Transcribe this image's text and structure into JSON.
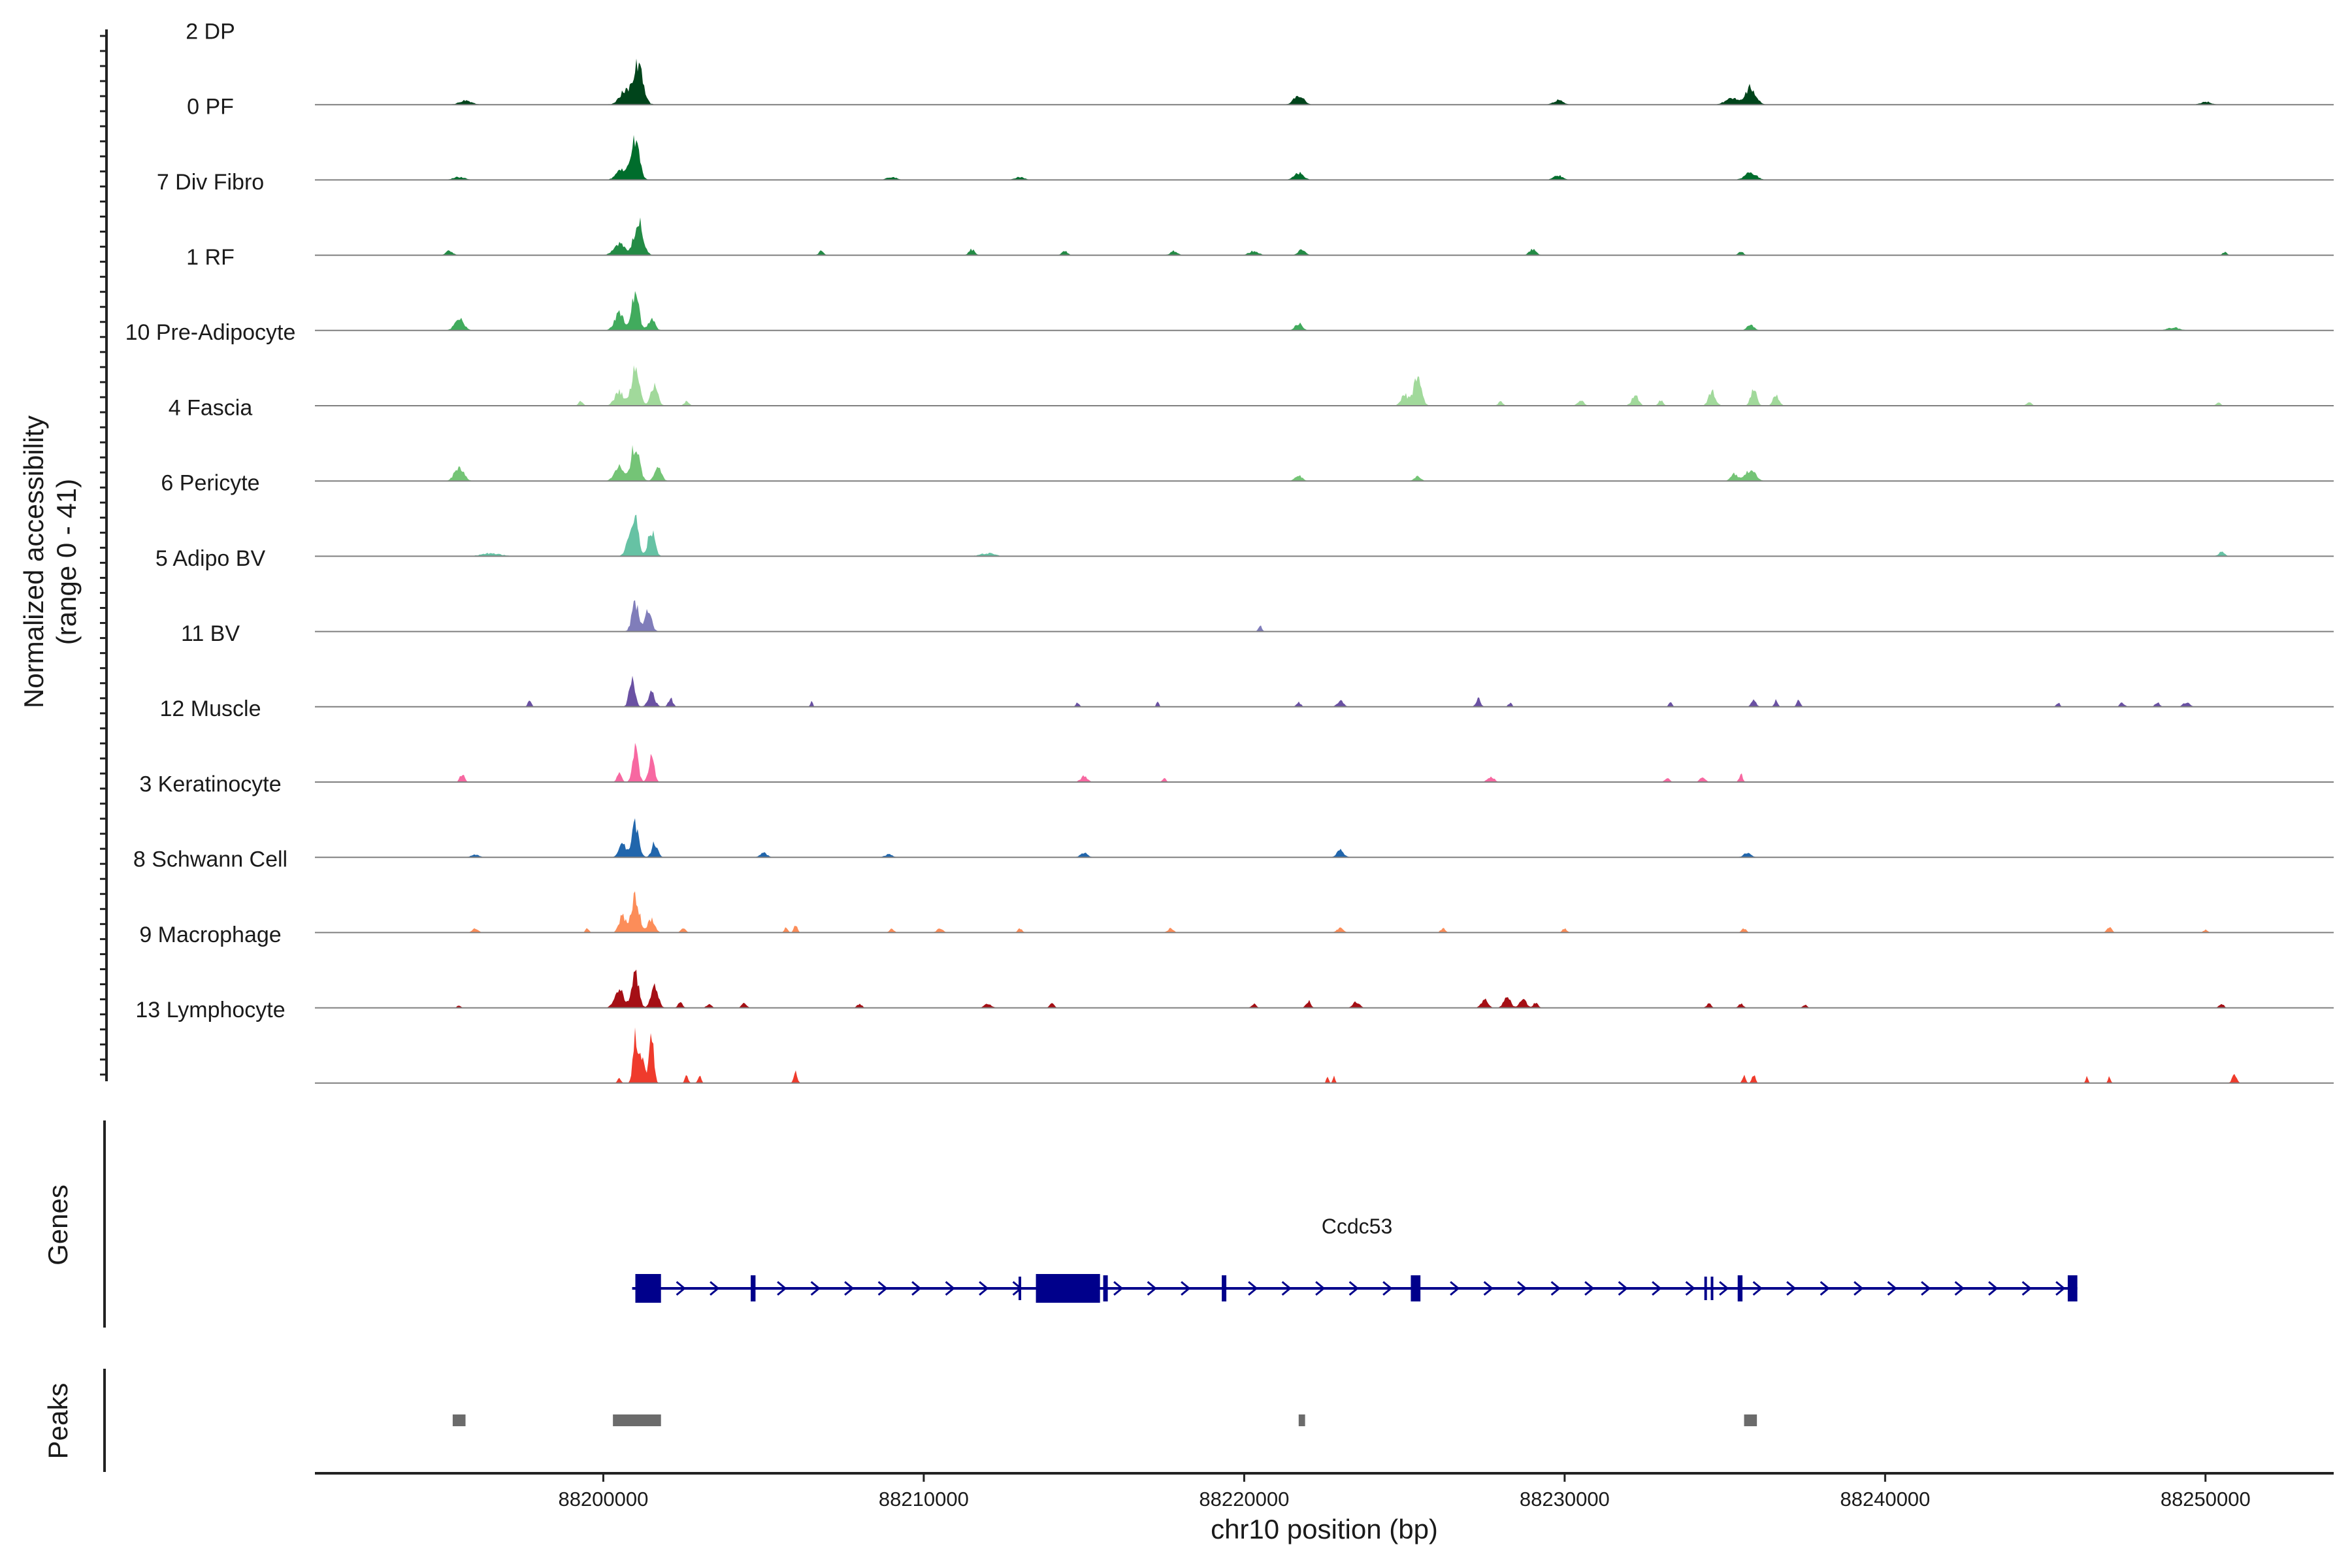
{
  "chart_data": {
    "type": "area",
    "ylabel_line1": "Normalized accessibility",
    "ylabel_line2": "(range 0 - 41)",
    "y_range": [
      0,
      41
    ],
    "xlabel": "chr10 position (bp)",
    "xlim": [
      88191000,
      88254000
    ],
    "xticks": [
      88200000,
      88210000,
      88220000,
      88230000,
      88240000,
      88250000
    ],
    "xtick_labels": [
      "88200000",
      "88210000",
      "88220000",
      "88230000",
      "88240000",
      "88250000"
    ],
    "tracks": [
      {
        "label": "2 DP",
        "color": "#00441b",
        "bg": 0.05,
        "peaks": [
          [
            88201100,
            30,
            400
          ],
          [
            88200700,
            10,
            500
          ],
          [
            88195700,
            3,
            500
          ],
          [
            88221700,
            7,
            400
          ],
          [
            88229800,
            3,
            400
          ],
          [
            88235800,
            12,
            450
          ],
          [
            88235200,
            5,
            500
          ],
          [
            88250000,
            2,
            400
          ]
        ]
      },
      {
        "label": "0 PF",
        "color": "#006d2c",
        "bg": 0.04,
        "peaks": [
          [
            88201000,
            27,
            350
          ],
          [
            88200600,
            8,
            500
          ],
          [
            88221700,
            5,
            400
          ],
          [
            88229800,
            3,
            400
          ],
          [
            88235800,
            5,
            500
          ],
          [
            88195500,
            2,
            500
          ],
          [
            88209000,
            2,
            400
          ],
          [
            88213000,
            2,
            400
          ]
        ]
      },
      {
        "label": "7 Div Fibro",
        "color": "#238b45",
        "bg": 0.02,
        "peaks": [
          [
            88201100,
            25,
            400
          ],
          [
            88200500,
            8,
            500
          ],
          [
            88195200,
            3,
            300
          ],
          [
            88206800,
            3,
            200
          ],
          [
            88211500,
            4,
            250
          ],
          [
            88214400,
            3,
            250
          ],
          [
            88217800,
            3,
            300
          ],
          [
            88220300,
            3,
            400
          ],
          [
            88221800,
            4,
            300
          ],
          [
            88229000,
            4,
            300
          ],
          [
            88235500,
            3,
            200
          ],
          [
            88250600,
            2,
            200
          ]
        ]
      },
      {
        "label": "1 RF",
        "color": "#41ab5d",
        "bg": 0.04,
        "peaks": [
          [
            88195500,
            8,
            400
          ],
          [
            88201000,
            27,
            300
          ],
          [
            88200500,
            12,
            400
          ],
          [
            88201500,
            8,
            300
          ],
          [
            88221700,
            5,
            300
          ],
          [
            88235800,
            4,
            300
          ],
          [
            88249000,
            2,
            500
          ]
        ]
      },
      {
        "label": "10 Pre-Adipocyte",
        "color": "#a1d99b",
        "bg": 0.02,
        "peaks": [
          [
            88201000,
            25,
            350
          ],
          [
            88200500,
            10,
            400
          ],
          [
            88201600,
            15,
            300
          ],
          [
            88225400,
            19,
            350
          ],
          [
            88225000,
            8,
            300
          ],
          [
            88234600,
            10,
            300
          ],
          [
            88235900,
            13,
            250
          ],
          [
            88236600,
            8,
            250
          ],
          [
            88230500,
            4,
            250
          ],
          [
            88232200,
            7,
            300
          ],
          [
            88228000,
            3,
            200
          ],
          [
            88233000,
            4,
            200
          ],
          [
            88244500,
            3,
            200
          ],
          [
            88199300,
            3,
            200
          ],
          [
            88202600,
            3,
            200
          ],
          [
            88250400,
            2,
            200
          ]
        ]
      },
      {
        "label": "4 Fascia",
        "color": "#74c476",
        "bg": 0.02,
        "peaks": [
          [
            88195500,
            10,
            400
          ],
          [
            88201000,
            27,
            350
          ],
          [
            88200500,
            12,
            400
          ],
          [
            88201700,
            10,
            300
          ],
          [
            88221700,
            4,
            300
          ],
          [
            88225400,
            3,
            300
          ],
          [
            88235800,
            8,
            450
          ],
          [
            88235300,
            5,
            300
          ]
        ]
      },
      {
        "label": "6 Pericyte",
        "color": "#66c2a4",
        "bg": 0.04,
        "peaks": [
          [
            88201000,
            24,
            300
          ],
          [
            88201500,
            18,
            300
          ],
          [
            88200800,
            10,
            300
          ],
          [
            88250500,
            3,
            250
          ],
          [
            88196500,
            2,
            800
          ],
          [
            88212000,
            2,
            600
          ]
        ]
      },
      {
        "label": "5 Adipo BV",
        "color": "#807dba",
        "bg": 0.02,
        "peaks": [
          [
            88201000,
            20,
            300
          ],
          [
            88201400,
            14,
            300
          ],
          [
            88220500,
            4,
            150
          ]
        ]
      },
      {
        "label": "11 BV",
        "color": "#6a51a3",
        "bg": 0,
        "peaks": [
          [
            88197700,
            5,
            150
          ],
          [
            88200900,
            22,
            250
          ],
          [
            88201500,
            10,
            300
          ],
          [
            88202100,
            6,
            200
          ],
          [
            88206500,
            4,
            100
          ],
          [
            88214800,
            3,
            150
          ],
          [
            88217300,
            4,
            100
          ],
          [
            88221700,
            3,
            200
          ],
          [
            88223000,
            4,
            300
          ],
          [
            88227300,
            6,
            200
          ],
          [
            88228300,
            3,
            150
          ],
          [
            88233300,
            3,
            150
          ],
          [
            88235900,
            6,
            200
          ],
          [
            88236600,
            5,
            150
          ],
          [
            88237300,
            5,
            150
          ],
          [
            88245400,
            3,
            150
          ],
          [
            88247400,
            3,
            200
          ],
          [
            88248500,
            3,
            200
          ],
          [
            88249400,
            3,
            300
          ]
        ]
      },
      {
        "label": "12 Muscle",
        "color": "#f768a1",
        "bg": 0,
        "peaks": [
          [
            88195600,
            6,
            200
          ],
          [
            88201000,
            26,
            250
          ],
          [
            88201500,
            18,
            250
          ],
          [
            88200500,
            6,
            200
          ],
          [
            88215000,
            4,
            300
          ],
          [
            88217500,
            3,
            150
          ],
          [
            88227700,
            4,
            300
          ],
          [
            88233200,
            3,
            200
          ],
          [
            88234300,
            3,
            250
          ],
          [
            88235500,
            6,
            150
          ]
        ]
      },
      {
        "label": "3 Keratinocyte",
        "color": "#2166ac",
        "bg": 0.04,
        "peaks": [
          [
            88201000,
            24,
            300
          ],
          [
            88200600,
            9,
            300
          ],
          [
            88201600,
            10,
            250
          ],
          [
            88223000,
            5,
            300
          ],
          [
            88205000,
            3,
            300
          ],
          [
            88215000,
            3,
            300
          ],
          [
            88235700,
            3,
            300
          ],
          [
            88208900,
            2,
            300
          ],
          [
            88196000,
            2,
            300
          ]
        ]
      },
      {
        "label": "8 Schwann Cell",
        "color": "#fc8d59",
        "bg": 0,
        "peaks": [
          [
            88201000,
            25,
            350
          ],
          [
            88200600,
            12,
            300
          ],
          [
            88201500,
            10,
            300
          ],
          [
            88205700,
            4,
            150
          ],
          [
            88206000,
            6,
            150
          ],
          [
            88202500,
            4,
            200
          ],
          [
            88199500,
            3,
            150
          ],
          [
            88196000,
            3,
            250
          ],
          [
            88209000,
            3,
            200
          ],
          [
            88210500,
            3,
            250
          ],
          [
            88213000,
            3,
            200
          ],
          [
            88217700,
            3,
            250
          ],
          [
            88223000,
            3,
            300
          ],
          [
            88226200,
            3,
            200
          ],
          [
            88230000,
            3,
            200
          ],
          [
            88235600,
            3,
            200
          ],
          [
            88247000,
            4,
            200
          ],
          [
            88250000,
            2,
            200
          ]
        ]
      },
      {
        "label": "9 Macrophage",
        "color": "#a50f15",
        "bg": 0,
        "peaks": [
          [
            88201000,
            24,
            300
          ],
          [
            88200500,
            14,
            400
          ],
          [
            88201600,
            16,
            300
          ],
          [
            88202400,
            4,
            200
          ],
          [
            88203300,
            3,
            200
          ],
          [
            88204400,
            4,
            200
          ],
          [
            88195500,
            2,
            150
          ],
          [
            88208000,
            3,
            200
          ],
          [
            88212000,
            3,
            300
          ],
          [
            88214000,
            3,
            200
          ],
          [
            88220300,
            3,
            200
          ],
          [
            88222000,
            5,
            200
          ],
          [
            88223500,
            4,
            300
          ],
          [
            88227500,
            6,
            300
          ],
          [
            88228200,
            8,
            300
          ],
          [
            88228700,
            6,
            300
          ],
          [
            88229100,
            4,
            200
          ],
          [
            88234500,
            3,
            200
          ],
          [
            88235500,
            3,
            200
          ],
          [
            88237500,
            2,
            200
          ],
          [
            88250500,
            3,
            200
          ]
        ]
      },
      {
        "label": "13 Lymphocyte",
        "color": "#ef3b2c",
        "bg": 0,
        "peaks": [
          [
            88200500,
            4,
            150
          ],
          [
            88201000,
            32,
            200
          ],
          [
            88201500,
            35,
            200
          ],
          [
            88201200,
            18,
            250
          ],
          [
            88202600,
            5,
            150
          ],
          [
            88203000,
            5,
            150
          ],
          [
            88206000,
            9,
            150
          ],
          [
            88222600,
            5,
            100
          ],
          [
            88222800,
            5,
            100
          ],
          [
            88235600,
            5,
            150
          ],
          [
            88235900,
            6,
            150
          ],
          [
            88246300,
            5,
            100
          ],
          [
            88247000,
            5,
            100
          ],
          [
            88250900,
            6,
            200
          ]
        ]
      }
    ],
    "genes_label": "Genes",
    "gene_name": "Ccdc53",
    "gene_color": "#00008b",
    "gene_span": [
      88200900,
      88246000
    ],
    "gene_exons": [
      [
        88201000,
        88201800
      ],
      [
        88204600,
        88204750
      ],
      [
        88213500,
        88215500
      ],
      [
        88215600,
        88215700
      ],
      [
        88219300,
        88219400
      ],
      [
        88225200,
        88225500
      ],
      [
        88235400,
        88235550
      ],
      [
        88245700,
        88246000
      ]
    ],
    "gene_marks": [
      88213000,
      88234400,
      88234600
    ],
    "peaks_label": "Peaks",
    "peaks_color": "#6b6b6b",
    "peak_regions": [
      [
        88195300,
        88195700
      ],
      [
        88200300,
        88201800
      ],
      [
        88221700,
        88221900
      ],
      [
        88235600,
        88236000
      ]
    ]
  }
}
